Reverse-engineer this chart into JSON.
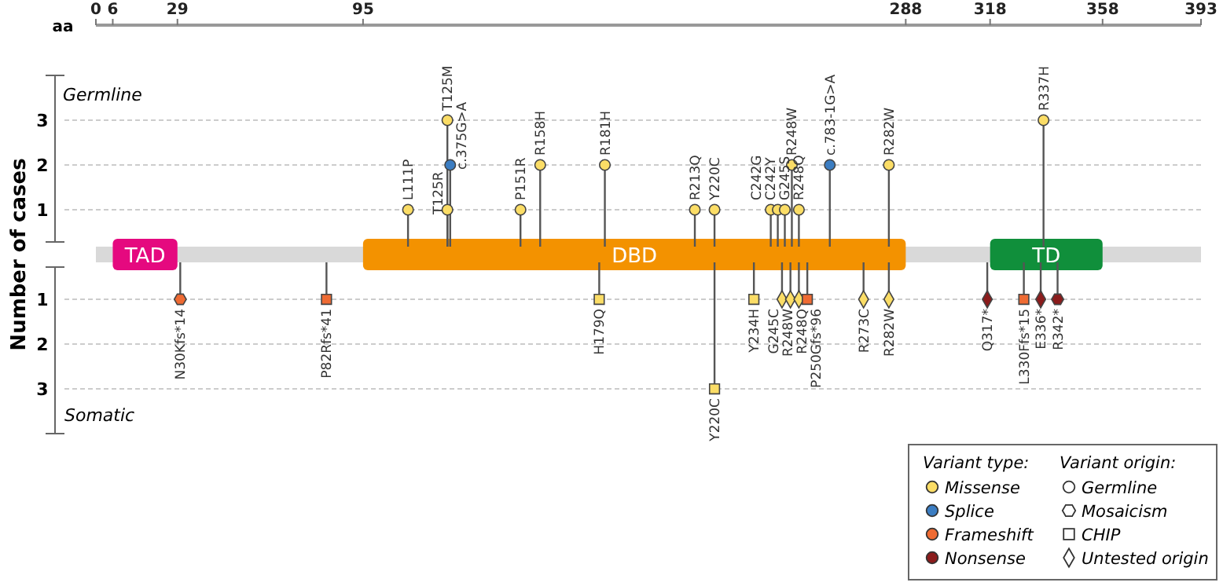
{
  "chart_data": {
    "type": "lollipop",
    "xlabel": "aa",
    "ylabel": "Number of cases",
    "legend_title": "Variant type:",
    "annotations": [
      "Germline",
      "Somatic",
      "Variant origin:"
    ],
    "xlim": [
      0,
      393
    ],
    "xticks": [
      0,
      6,
      29,
      95,
      288,
      318,
      358,
      393
    ],
    "ylim": [
      -4,
      4
    ],
    "yticks": [
      {
        "value": -3,
        "label": "3"
      },
      {
        "value": -2,
        "label": "2"
      },
      {
        "value": -1,
        "label": "1"
      },
      1,
      2,
      3
    ],
    "grid": "y",
    "legend": "bottom right",
    "bands": [
      {
        "axis": "x",
        "from": 6,
        "to": 29,
        "label": "TAD",
        "color": "#e5097f"
      },
      {
        "axis": "x",
        "from": 95,
        "to": 288,
        "label": "DBD",
        "color": "#f39200"
      },
      {
        "axis": "x",
        "from": 318,
        "to": 358,
        "label": "TD",
        "color": "#108f3b"
      }
    ],
    "series": [
      {
        "color": "#fbdd66",
        "marker": "circle",
        "x": [
          111,
          125,
          125,
          151,
          158,
          181,
          213,
          220,
          240,
          242.5,
          245,
          247.5,
          250,
          282,
          337
        ],
        "values": [
          1,
          1,
          3,
          1,
          2,
          2,
          1,
          1,
          1,
          1,
          1,
          2,
          1,
          2,
          3
        ],
        "value_labels": [
          "L111P",
          "T125R",
          "T125M",
          "P151R",
          "R158H",
          "R181H",
          "R213Q",
          "Y220C",
          "C242G",
          "C242Y",
          "G245S",
          "R248W",
          "R248Q",
          "R282W",
          "R337H"
        ]
      },
      {
        "color": "#fbdd66",
        "marker": "square",
        "x": [
          179,
          220,
          234
        ],
        "values": [
          -1,
          -3,
          -1
        ],
        "value_labels": [
          "H179Q",
          "Y220C",
          "Y234H"
        ]
      },
      {
        "color": "#fbdd66",
        "marker": "diamond",
        "x": [
          244,
          247,
          250,
          273,
          282
        ],
        "values": [
          -1,
          -1,
          -1,
          -1,
          -1
        ],
        "value_labels": [
          "G245C",
          "R248W",
          "R248Q",
          "R273C",
          "R282W"
        ]
      },
      {
        "color": "#3b7dc2",
        "marker": "circle",
        "x": [
          126,
          261
        ],
        "values": [
          2,
          2
        ],
        "value_labels": [
          "c.375G>A",
          "c.783-1G>A"
        ]
      },
      {
        "color": "#ef6b33",
        "x": [
          30
        ],
        "values": [
          -1
        ],
        "value_labels": [
          "N30Kfs*14"
        ]
      },
      {
        "color": "#ef6b33",
        "marker": "square",
        "x": [
          82,
          253,
          330
        ],
        "values": [
          -1,
          -1,
          -1
        ],
        "value_labels": [
          "P82Rfs*41",
          "P250Gfs*96",
          "L330Ffs*15"
        ]
      },
      {
        "color": "#8b1c1c",
        "marker": "diamond",
        "x": [
          317,
          336
        ],
        "values": [
          -1,
          -1
        ],
        "value_labels": [
          "Q317*",
          "E336*"
        ]
      },
      {
        "color": "#8b1c1c",
        "x": [
          342
        ],
        "values": [
          -1
        ],
        "value_labels": [
          "R342*"
        ]
      },
      {
        "name": "Missense",
        "color": "#fbdd66",
        "marker": "circle"
      },
      {
        "name": "Splice",
        "color": "#3b7dc2",
        "marker": "circle"
      },
      {
        "name": "Frameshift",
        "color": "#ef6b33",
        "marker": "circle"
      },
      {
        "name": "Nonsense",
        "color": "#8b1c1c",
        "marker": "circle"
      },
      {
        "name": "Germline",
        "type": "scatter",
        "color": "#ffffff",
        "marker": "circle"
      },
      {
        "name": "Mosaicism",
        "type": "scatter",
        "color": "#ffffff"
      },
      {
        "name": "CHIP",
        "type": "scatter",
        "color": "#ffffff",
        "marker": "square"
      },
      {
        "name": "Untested origin",
        "type": "scatter",
        "color": "#ffffff",
        "marker": "diamond"
      }
    ]
  }
}
